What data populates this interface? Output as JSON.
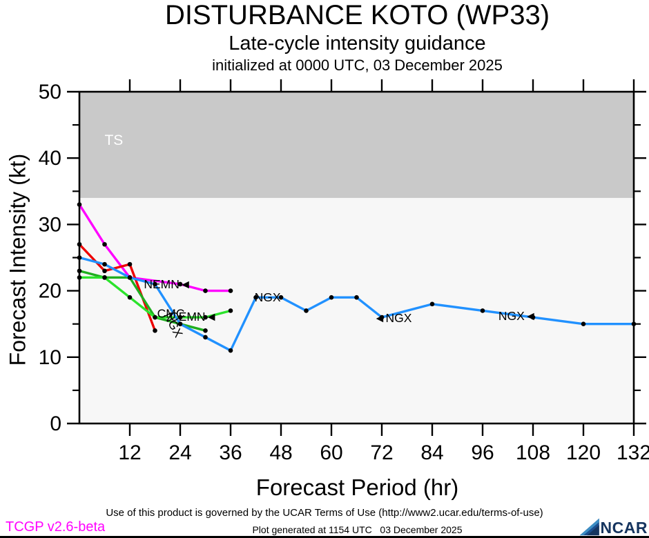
{
  "header": {
    "title": "DISTURBANCE KOTO (WP33)",
    "subtitle": "Late-cycle intensity guidance",
    "init_line": "initialized at 0000 UTC, 03 December 2025"
  },
  "chart_data": {
    "type": "line",
    "title": "DISTURBANCE KOTO (WP33) late-cycle intensity guidance",
    "xlabel": "Forecast Period (hr)",
    "ylabel": "Forecast Intensity (kt)",
    "xlim": [
      0,
      132
    ],
    "ylim": [
      0,
      50
    ],
    "xticks": [
      12,
      24,
      36,
      48,
      60,
      72,
      84,
      96,
      108,
      120,
      132
    ],
    "yticks_major": [
      0,
      10,
      20,
      30,
      40,
      50
    ],
    "yticks_minor": [
      5,
      15,
      25,
      35,
      45
    ],
    "grid": false,
    "legend_position": "inline-labels",
    "ts_band": {
      "from": 34,
      "to": 50,
      "label": "TS",
      "color": "#c9c9c9",
      "label_color": "#ffffff",
      "label_hr": 8.2,
      "label_kt": 42.0
    },
    "plot_bg": "#f7f7f7",
    "series": [
      {
        "name": "NEMN",
        "color": "#ff00ff",
        "x": [
          0,
          6,
          12,
          24,
          30,
          36
        ],
        "values": [
          33,
          27,
          22,
          21,
          20,
          20
        ]
      },
      {
        "name": "unlabeled-red",
        "color": "#ee0000",
        "x": [
          0,
          6,
          12,
          18
        ],
        "values": [
          27,
          23,
          24,
          14
        ]
      },
      {
        "name": "CMC",
        "color": "#1fae1f",
        "x": [
          0,
          6,
          12,
          18,
          24,
          30
        ],
        "values": [
          23,
          22,
          22,
          16,
          15,
          14
        ]
      },
      {
        "name": "CEMN",
        "color": "#2be32b",
        "x": [
          0,
          6,
          12,
          18,
          24,
          30,
          36
        ],
        "values": [
          22,
          22,
          19,
          16,
          16,
          16,
          17
        ]
      },
      {
        "name": "NGX",
        "color": "#2191ff",
        "x": [
          0,
          6,
          12,
          18,
          24,
          30,
          36,
          42,
          48,
          54,
          60,
          66,
          72,
          84,
          96,
          108,
          120,
          132
        ],
        "values": [
          25,
          24,
          22,
          21,
          15,
          13,
          11,
          19,
          19,
          17,
          19,
          19,
          16,
          18,
          17,
          16,
          15,
          15
        ]
      }
    ],
    "line_labels": [
      {
        "text": "NEMN◄",
        "hr": 21.0,
        "kt": 21.0,
        "rotate": 0
      },
      {
        "text": "CMC",
        "hr": 21.8,
        "kt": 16.6,
        "rotate": 0
      },
      {
        "text": "NGX",
        "hr": 21.5,
        "kt": 15.2,
        "rotate": 62
      },
      {
        "text": "CEMN◄",
        "hr": 27.2,
        "kt": 16.1,
        "rotate": 0
      },
      {
        "text": "NGX",
        "hr": 44.8,
        "kt": 19.0,
        "rotate": 0
      },
      {
        "text": "◄NGX",
        "hr": 74.6,
        "kt": 15.9,
        "rotate": 0
      },
      {
        "text": "NGX◄",
        "hr": 104.3,
        "kt": 16.2,
        "rotate": 0
      }
    ]
  },
  "footer": {
    "terms": "Use of this product is governed by the UCAR Terms of Use (http://www2.ucar.edu/terms-of-use)",
    "version": "TCGP v2.6-beta",
    "generated": "Plot generated at 1154 UTC   03 December 2025",
    "logo_text": "NCAR"
  }
}
